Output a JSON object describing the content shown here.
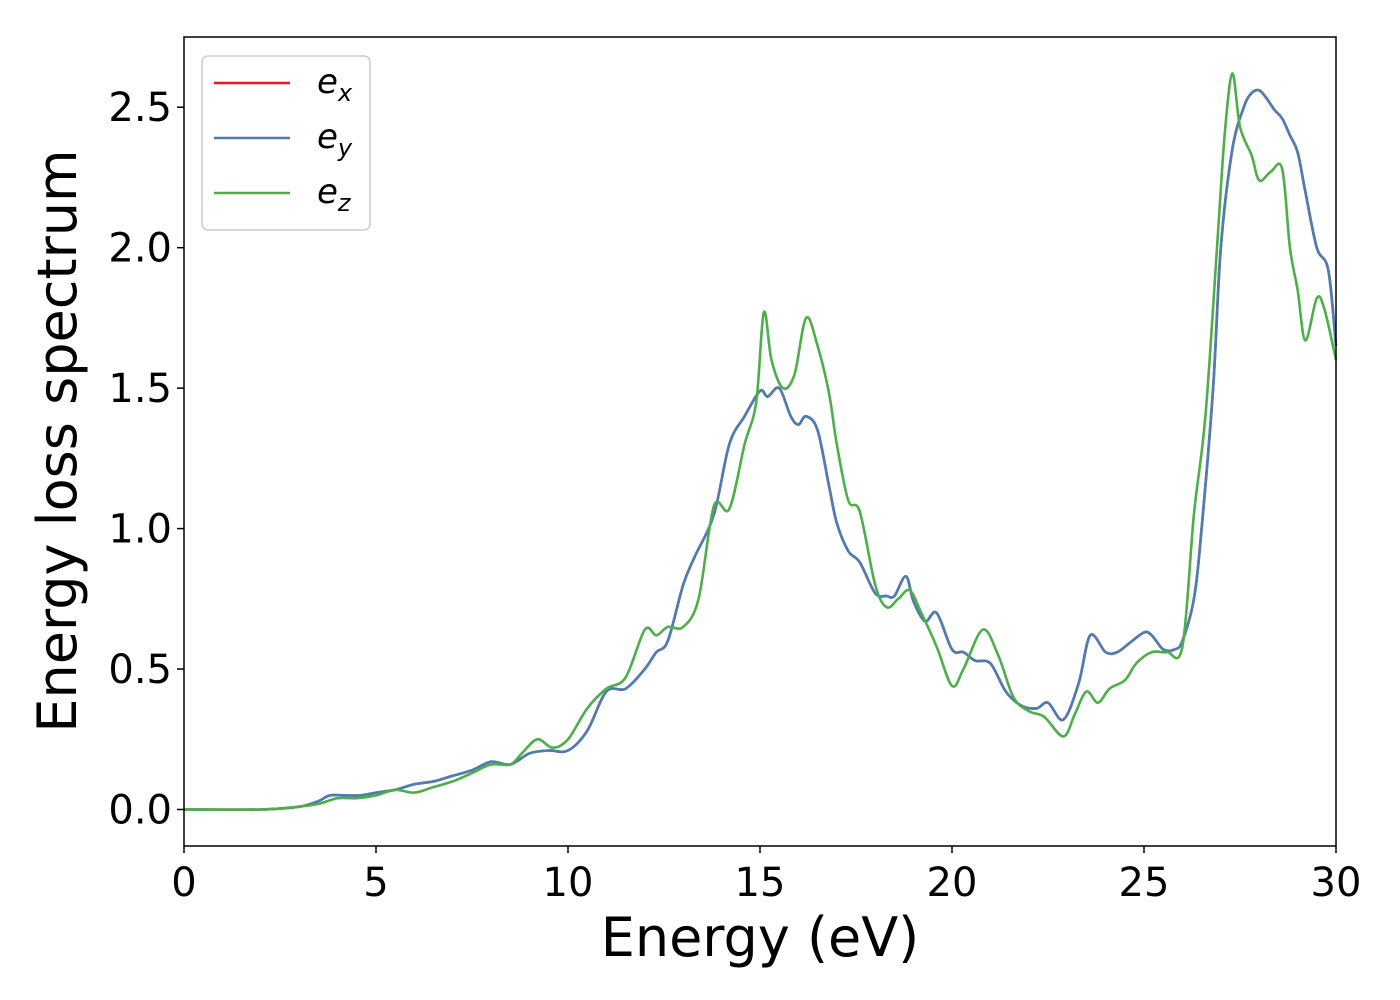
{
  "chart_data": {
    "type": "line",
    "xlabel": "Energy (eV)",
    "ylabel": "Energy loss spectrum",
    "xlim": [
      0,
      30
    ],
    "ylim": [
      -0.13,
      2.75
    ],
    "xticks": [
      0,
      5,
      10,
      15,
      20,
      25,
      30
    ],
    "yticks": [
      0.0,
      0.5,
      1.0,
      1.5,
      2.0,
      2.5
    ],
    "xtick_labels": [
      "0",
      "5",
      "10",
      "15",
      "20",
      "25",
      "30"
    ],
    "ytick_labels": [
      "0.0",
      "0.5",
      "1.0",
      "1.5",
      "2.0",
      "2.5"
    ],
    "grid": false,
    "legend_position": "top-left",
    "series": [
      {
        "name": "e_x",
        "legend_base": "e",
        "legend_sub": "x",
        "color": "#e41a1c",
        "x": [
          0,
          2,
          3,
          3.5,
          3.8,
          4.2,
          4.6,
          5.0,
          5.5,
          6.0,
          6.5,
          7.0,
          7.5,
          8.0,
          8.5,
          9.0,
          9.5,
          10.0,
          10.5,
          11.0,
          11.5,
          12.0,
          12.3,
          12.6,
          13.0,
          13.3,
          13.8,
          14.2,
          14.6,
          15.0,
          15.2,
          15.5,
          15.8,
          16.0,
          16.2,
          16.5,
          16.8,
          17.0,
          17.3,
          17.6,
          18.0,
          18.3,
          18.5,
          18.8,
          19.0,
          19.3,
          19.6,
          20.0,
          20.3,
          20.6,
          21.0,
          21.4,
          21.8,
          22.2,
          22.5,
          22.9,
          23.3,
          23.6,
          24.0,
          24.3,
          24.6,
          25.0,
          25.2,
          25.5,
          25.8,
          26.0,
          26.3,
          26.5,
          26.8,
          27.0,
          27.3,
          27.6,
          27.8,
          28.0,
          28.2,
          28.4,
          28.6,
          28.8,
          29.0,
          29.2,
          29.5,
          29.8,
          30.0
        ],
        "y": [
          0,
          0,
          0.01,
          0.03,
          0.05,
          0.05,
          0.05,
          0.06,
          0.07,
          0.09,
          0.1,
          0.12,
          0.14,
          0.17,
          0.16,
          0.2,
          0.21,
          0.21,
          0.28,
          0.42,
          0.43,
          0.5,
          0.56,
          0.6,
          0.8,
          0.9,
          1.05,
          1.3,
          1.4,
          1.49,
          1.47,
          1.5,
          1.4,
          1.37,
          1.4,
          1.35,
          1.15,
          1.02,
          0.92,
          0.88,
          0.77,
          0.76,
          0.76,
          0.83,
          0.74,
          0.67,
          0.7,
          0.57,
          0.56,
          0.53,
          0.52,
          0.42,
          0.37,
          0.36,
          0.38,
          0.32,
          0.45,
          0.62,
          0.56,
          0.56,
          0.59,
          0.63,
          0.62,
          0.57,
          0.57,
          0.6,
          0.75,
          1.0,
          1.5,
          2.0,
          2.35,
          2.5,
          2.55,
          2.56,
          2.53,
          2.49,
          2.46,
          2.4,
          2.34,
          2.2,
          2.0,
          1.92,
          1.65
        ]
      },
      {
        "name": "e_y",
        "legend_base": "e",
        "legend_sub": "y",
        "color": "#4a7fb5",
        "x": [
          0,
          2,
          3,
          3.5,
          3.8,
          4.2,
          4.6,
          5.0,
          5.5,
          6.0,
          6.5,
          7.0,
          7.5,
          8.0,
          8.5,
          9.0,
          9.5,
          10.0,
          10.5,
          11.0,
          11.5,
          12.0,
          12.3,
          12.6,
          13.0,
          13.3,
          13.8,
          14.2,
          14.6,
          15.0,
          15.2,
          15.5,
          15.8,
          16.0,
          16.2,
          16.5,
          16.8,
          17.0,
          17.3,
          17.6,
          18.0,
          18.3,
          18.5,
          18.8,
          19.0,
          19.3,
          19.6,
          20.0,
          20.3,
          20.6,
          21.0,
          21.4,
          21.8,
          22.2,
          22.5,
          22.9,
          23.3,
          23.6,
          24.0,
          24.3,
          24.6,
          25.0,
          25.2,
          25.5,
          25.8,
          26.0,
          26.3,
          26.5,
          26.8,
          27.0,
          27.3,
          27.6,
          27.8,
          28.0,
          28.2,
          28.4,
          28.6,
          28.8,
          29.0,
          29.2,
          29.5,
          29.8,
          30.0
        ],
        "y": [
          0,
          0,
          0.01,
          0.03,
          0.05,
          0.05,
          0.05,
          0.06,
          0.07,
          0.09,
          0.1,
          0.12,
          0.14,
          0.17,
          0.16,
          0.2,
          0.21,
          0.21,
          0.28,
          0.42,
          0.43,
          0.5,
          0.56,
          0.6,
          0.8,
          0.9,
          1.05,
          1.3,
          1.4,
          1.49,
          1.47,
          1.5,
          1.4,
          1.37,
          1.4,
          1.35,
          1.15,
          1.02,
          0.92,
          0.88,
          0.77,
          0.76,
          0.76,
          0.83,
          0.74,
          0.67,
          0.7,
          0.57,
          0.56,
          0.53,
          0.52,
          0.42,
          0.37,
          0.36,
          0.38,
          0.32,
          0.45,
          0.62,
          0.56,
          0.56,
          0.59,
          0.63,
          0.62,
          0.57,
          0.57,
          0.6,
          0.75,
          1.0,
          1.5,
          2.0,
          2.35,
          2.5,
          2.55,
          2.56,
          2.53,
          2.49,
          2.46,
          2.4,
          2.34,
          2.2,
          2.0,
          1.92,
          1.65
        ]
      },
      {
        "name": "e_z",
        "legend_base": "e",
        "legend_sub": "z",
        "color": "#4daf4a",
        "x": [
          0,
          2,
          3,
          3.5,
          4.0,
          4.5,
          5.0,
          5.5,
          6.0,
          6.5,
          7.0,
          7.5,
          8.0,
          8.5,
          8.8,
          9.2,
          9.6,
          10.0,
          10.5,
          11.0,
          11.5,
          12.0,
          12.3,
          12.6,
          13.0,
          13.4,
          13.8,
          14.2,
          14.6,
          14.9,
          15.1,
          15.3,
          15.6,
          15.9,
          16.2,
          16.5,
          16.8,
          17.0,
          17.3,
          17.6,
          18.0,
          18.3,
          18.6,
          18.9,
          19.2,
          19.6,
          20.0,
          20.3,
          20.8,
          21.2,
          21.6,
          22.0,
          22.4,
          22.9,
          23.2,
          23.5,
          23.8,
          24.1,
          24.5,
          24.8,
          25.2,
          25.6,
          26.0,
          26.3,
          26.6,
          26.9,
          27.1,
          27.3,
          27.5,
          27.8,
          28.0,
          28.3,
          28.6,
          28.8,
          29.0,
          29.2,
          29.5,
          29.7,
          30.0
        ],
        "y": [
          0,
          0,
          0.01,
          0.02,
          0.04,
          0.04,
          0.05,
          0.07,
          0.06,
          0.08,
          0.1,
          0.13,
          0.16,
          0.16,
          0.2,
          0.25,
          0.22,
          0.25,
          0.36,
          0.43,
          0.47,
          0.64,
          0.62,
          0.65,
          0.65,
          0.75,
          1.08,
          1.07,
          1.3,
          1.45,
          1.77,
          1.6,
          1.5,
          1.55,
          1.75,
          1.65,
          1.48,
          1.3,
          1.1,
          1.06,
          0.8,
          0.72,
          0.75,
          0.78,
          0.7,
          0.58,
          0.44,
          0.5,
          0.64,
          0.55,
          0.4,
          0.35,
          0.33,
          0.26,
          0.34,
          0.42,
          0.38,
          0.43,
          0.46,
          0.52,
          0.56,
          0.56,
          0.58,
          1.05,
          1.4,
          2.0,
          2.4,
          2.62,
          2.43,
          2.33,
          2.24,
          2.27,
          2.28,
          2.0,
          1.85,
          1.67,
          1.82,
          1.78,
          1.6
        ]
      }
    ]
  }
}
